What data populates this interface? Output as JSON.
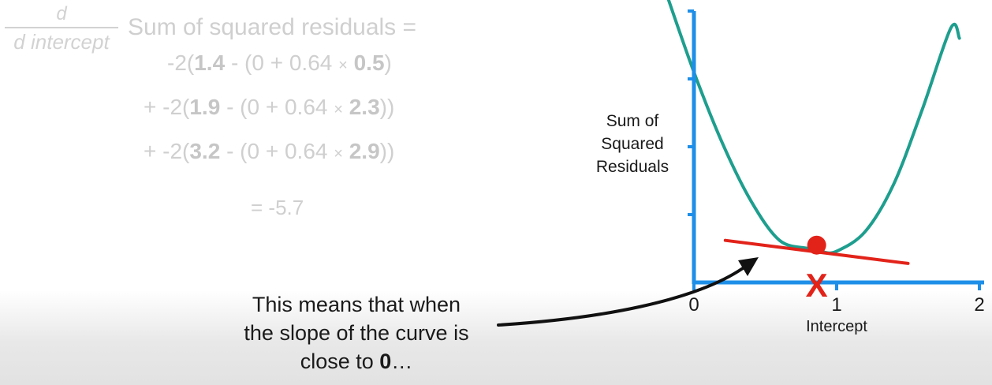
{
  "equation": {
    "numerator": "d",
    "denominator": "d intercept",
    "head": "Sum of squared residuals =",
    "terms": [
      {
        "prefix": "-2(",
        "obs": "1.4",
        "mid": " - (0 + 0.64 ",
        "times": "×",
        "x": "0.5",
        "suffix": ")"
      },
      {
        "prefix": "+ -2(",
        "obs": "1.9",
        "mid": " - (0 + 0.64 ",
        "times": "×",
        "x": "2.3",
        "suffix": "))"
      },
      {
        "prefix": "+ -2(",
        "obs": "3.2",
        "mid": " - (0 + 0.64 ",
        "times": "×",
        "x": "2.9",
        "suffix": "))"
      }
    ],
    "result": "= -5.7"
  },
  "caption": {
    "line1": "This means that when",
    "line2": "the slope of the curve is",
    "line3_prefix": "close to ",
    "line3_bold": "0",
    "line3_suffix": "…"
  },
  "chart_data": {
    "type": "line",
    "title": "",
    "xlabel": "Intercept",
    "ylabel": "Sum of Squared Residuals",
    "ylabel_lines": [
      "Sum of",
      "Squared",
      "Residuals"
    ],
    "xlim": [
      0,
      2
    ],
    "ylim": [
      0,
      4
    ],
    "x_ticks": [
      0,
      1,
      2
    ],
    "x_tick_labels": [
      "0",
      "1",
      "2"
    ],
    "y_ticks": [
      1,
      2,
      3,
      4
    ],
    "series": [
      {
        "name": "Sum of Squared Residuals",
        "x": [
          -0.2,
          0,
          0.2,
          0.4,
          0.6,
          0.8,
          0.9,
          1.0,
          1.2,
          1.4,
          1.6,
          1.8,
          1.86
        ],
        "y": [
          4.3,
          3.1,
          2.05,
          1.2,
          0.62,
          0.5,
          0.45,
          0.46,
          0.75,
          1.45,
          2.55,
          3.75,
          3.6
        ]
      }
    ],
    "point": {
      "x": 0.86,
      "y": 0.55
    },
    "tangent": {
      "x": [
        0.22,
        1.5
      ],
      "y": [
        0.62,
        0.28
      ]
    },
    "marker_label": "X",
    "marker_x": 0.86,
    "colors": {
      "curve": "#1e9e8e",
      "axis": "#1e8fe8",
      "highlight": "#e2231a"
    }
  }
}
